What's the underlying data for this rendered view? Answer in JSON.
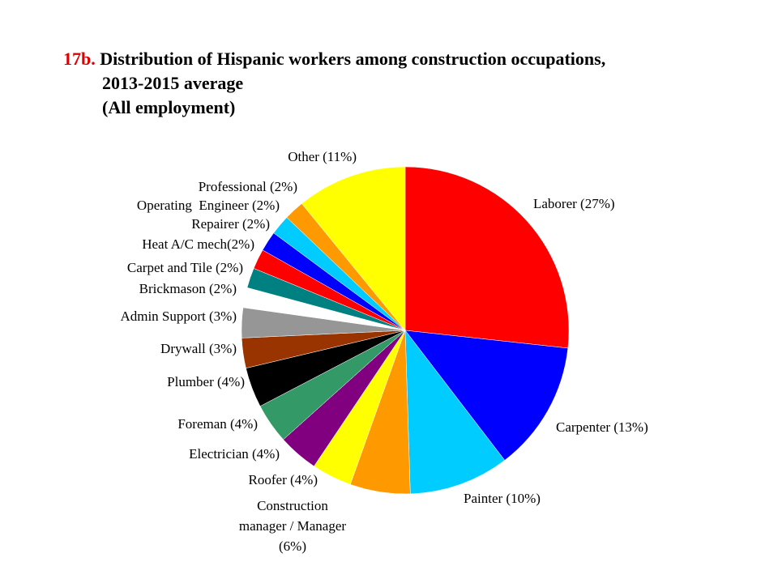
{
  "title": {
    "number": "17b.",
    "line1": "Distribution of Hispanic workers among construction occupations,",
    "line2": "2013-2015 average",
    "line3": "(All employment)"
  },
  "chart_data": {
    "type": "pie",
    "title": "Distribution of Hispanic workers among construction occupations, 2013-2015 average (All employment)",
    "slices": [
      {
        "name": "Laborer",
        "value": 27,
        "color": "#ff0000",
        "label": [
          "Laborer (27%)"
        ]
      },
      {
        "name": "Carpenter",
        "value": 13,
        "color": "#0000ff",
        "label": [
          "Carpenter (13%)"
        ]
      },
      {
        "name": "Painter",
        "value": 10,
        "color": "#00ccff",
        "label": [
          "Painter (10%)"
        ]
      },
      {
        "name": "Construction manager / Manager",
        "value": 6,
        "color": "#ff9900",
        "label": [
          "Construction",
          "manager / Manager",
          "(6%)"
        ]
      },
      {
        "name": "Roofer",
        "value": 4,
        "color": "#ffff00",
        "label": [
          "Roofer (4%)"
        ]
      },
      {
        "name": "Electrician",
        "value": 4,
        "color": "#800080",
        "label": [
          "Electrician (4%)"
        ]
      },
      {
        "name": "Foreman",
        "value": 4,
        "color": "#339966",
        "label": [
          "Foreman (4%)"
        ]
      },
      {
        "name": "Plumber",
        "value": 4,
        "color": "#000000",
        "label": [
          "Plumber (4%)"
        ]
      },
      {
        "name": "Drywall",
        "value": 3,
        "color": "#993300",
        "label": [
          "Drywall (3%)"
        ]
      },
      {
        "name": "Admin Support",
        "value": 3,
        "color": "#969696",
        "label": [
          "Admin Support (3%)"
        ]
      },
      {
        "name": "Brickmason",
        "value": 2,
        "color": "#ffffff",
        "label": [
          "Brickmason (2%)"
        ]
      },
      {
        "name": "Carpet and Tile",
        "value": 2,
        "color": "#008080",
        "label": [
          "Carpet and Tile (2%)"
        ]
      },
      {
        "name": "Heat A/C mech",
        "value": 2,
        "color": "#ff0000",
        "label": [
          "Heat A/C mech(2%)"
        ]
      },
      {
        "name": "Repairer",
        "value": 2,
        "color": "#0000ff",
        "label": [
          "Repairer (2%)"
        ]
      },
      {
        "name": "Operating Engineer",
        "value": 2,
        "color": "#00ccff",
        "label": [
          "Operating  Engineer (2%)"
        ]
      },
      {
        "name": "Professional",
        "value": 2,
        "color": "#ff9900",
        "label": [
          "Professional (2%)"
        ]
      },
      {
        "name": "Other",
        "value": 11,
        "color": "#ffff00",
        "label": [
          "Other (11%)"
        ]
      }
    ]
  }
}
